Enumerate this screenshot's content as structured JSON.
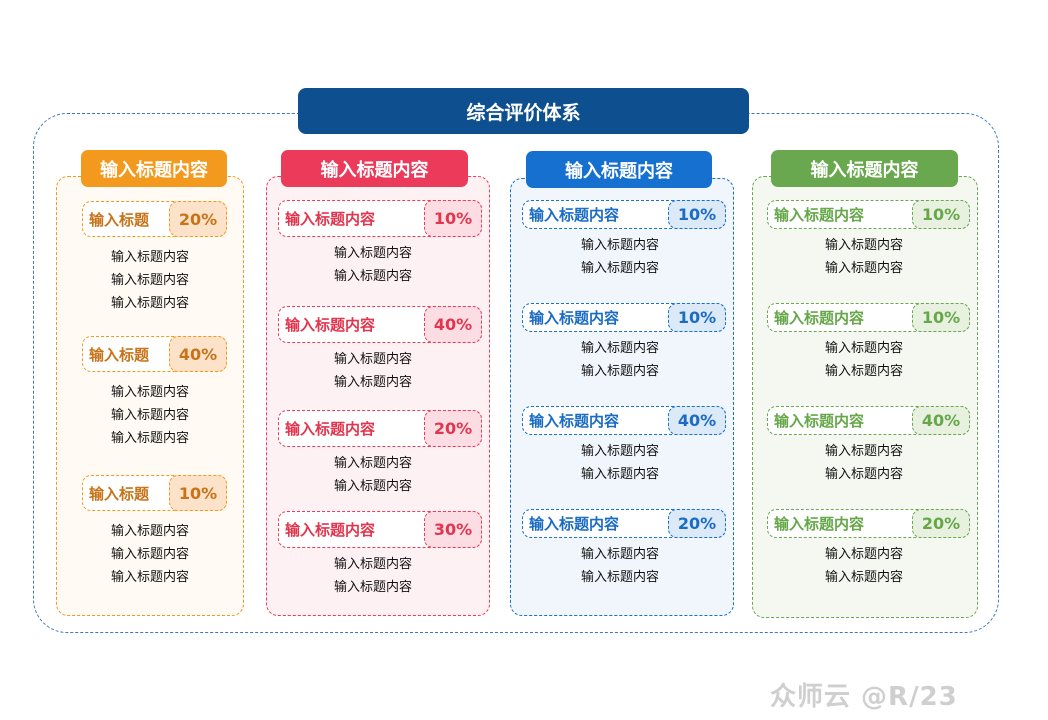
{
  "title": "综合评价体系",
  "watermark": "众师云 @R/23",
  "columns": [
    {
      "header": "输入标题内容",
      "color": "#f39a1e",
      "text_color": "#c8731a",
      "panel_bg": "#fffaf3",
      "badge_bg": "#fbe2c8",
      "items": [
        {
          "title": "输入标题",
          "percent": "20%",
          "lines": [
            "输入标题内容",
            "输入标题内容",
            "输入标题内容"
          ]
        },
        {
          "title": "输入标题",
          "percent": "40%",
          "lines": [
            "输入标题内容",
            "输入标题内容",
            "输入标题内容"
          ]
        },
        {
          "title": "输入标题",
          "percent": "10%",
          "lines": [
            "输入标题内容",
            "输入标题内容",
            "输入标题内容"
          ]
        }
      ]
    },
    {
      "header": "输入标题内容",
      "color": "#ec3b5a",
      "text_color": "#e2364f",
      "panel_bg": "#fef1f4",
      "badge_bg": "#fbdde3",
      "items": [
        {
          "title": "输入标题内容",
          "percent": "10%",
          "lines": [
            "输入标题内容",
            "输入标题内容"
          ]
        },
        {
          "title": "输入标题内容",
          "percent": "40%",
          "lines": [
            "输入标题内容",
            "输入标题内容"
          ]
        },
        {
          "title": "输入标题内容",
          "percent": "20%",
          "lines": [
            "输入标题内容",
            "输入标题内容"
          ]
        },
        {
          "title": "输入标题内容",
          "percent": "30%",
          "lines": [
            "输入标题内容",
            "输入标题内容"
          ]
        }
      ]
    },
    {
      "header": "输入标题内容",
      "color": "#1570cf",
      "text_color": "#1b6cc4",
      "panel_bg": "#f1f6fc",
      "badge_bg": "#dce9f7",
      "items": [
        {
          "title": "输入标题内容",
          "percent": "10%",
          "lines": [
            "输入标题内容",
            "输入标题内容"
          ]
        },
        {
          "title": "输入标题内容",
          "percent": "10%",
          "lines": [
            "输入标题内容",
            "输入标题内容"
          ]
        },
        {
          "title": "输入标题内容",
          "percent": "40%",
          "lines": [
            "输入标题内容",
            "输入标题内容"
          ]
        },
        {
          "title": "输入标题内容",
          "percent": "20%",
          "lines": [
            "输入标题内容",
            "输入标题内容"
          ]
        }
      ]
    },
    {
      "header": "输入标题内容",
      "color": "#6aa84f",
      "text_color": "#65a749",
      "panel_bg": "#f4f8f0",
      "badge_bg": "#e8f1e0",
      "items": [
        {
          "title": "输入标题内容",
          "percent": "10%",
          "lines": [
            "输入标题内容",
            "输入标题内容"
          ]
        },
        {
          "title": "输入标题内容",
          "percent": "10%",
          "lines": [
            "输入标题内容",
            "输入标题内容"
          ]
        },
        {
          "title": "输入标题内容",
          "percent": "40%",
          "lines": [
            "输入标题内容",
            "输入标题内容"
          ]
        },
        {
          "title": "输入标题内容",
          "percent": "20%",
          "lines": [
            "输入标题内容",
            "输入标题内容"
          ]
        }
      ]
    }
  ]
}
